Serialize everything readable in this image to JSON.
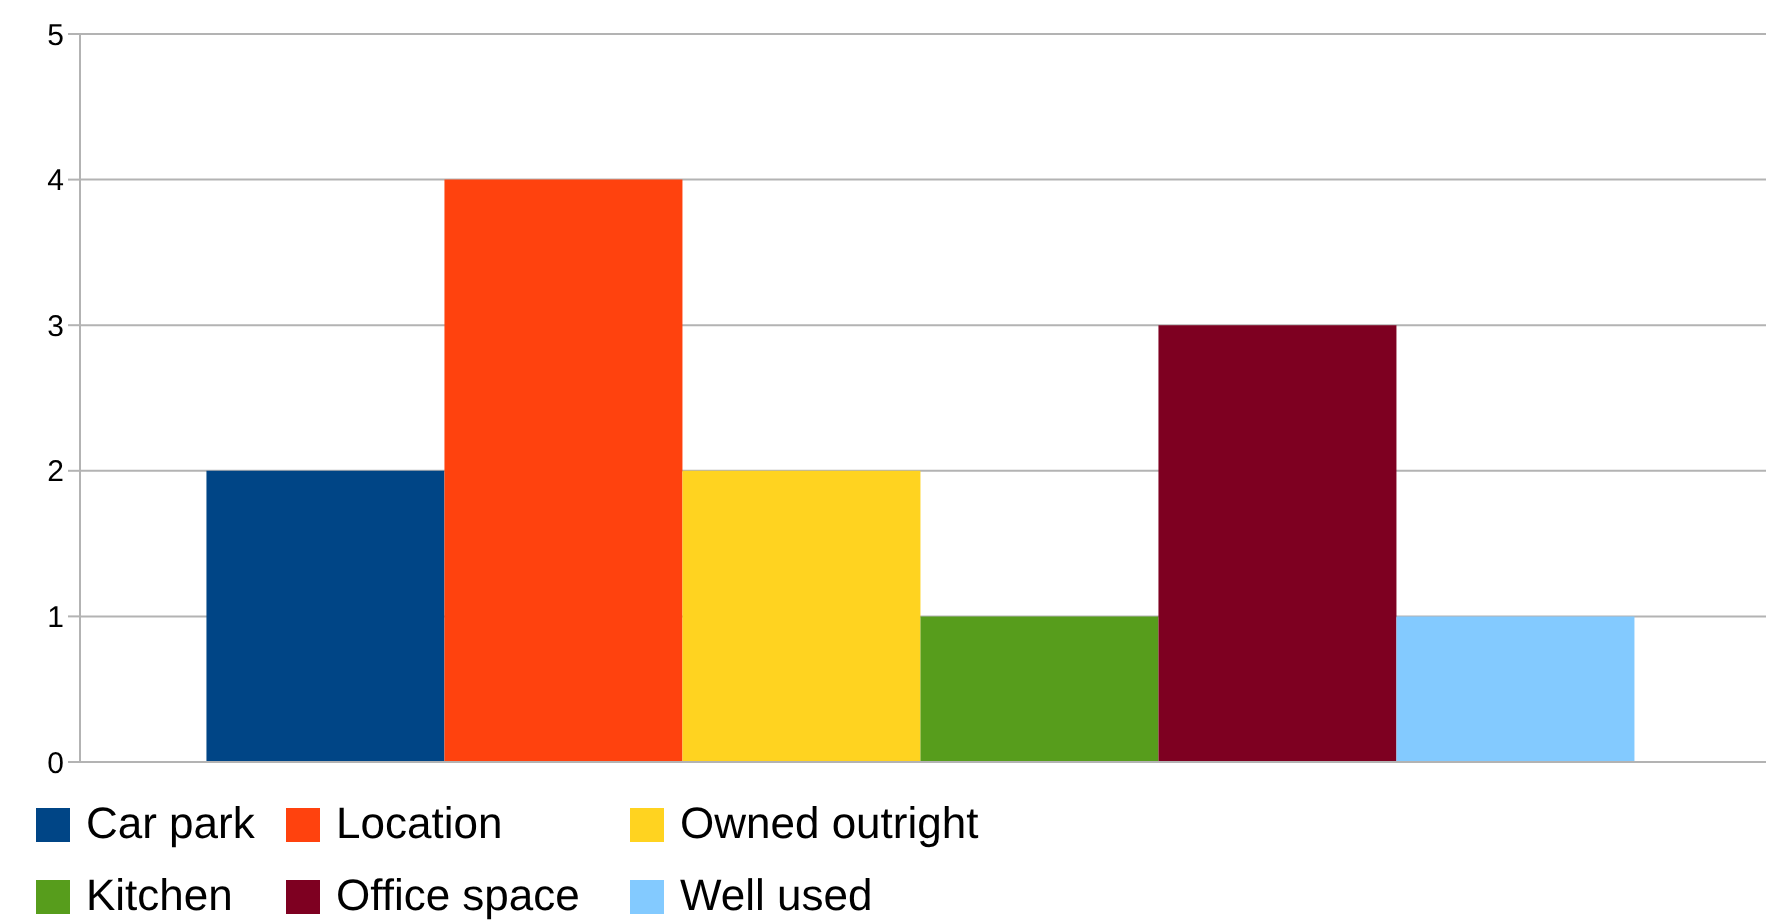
{
  "chart_data": {
    "type": "bar",
    "categories": [
      null
    ],
    "series": [
      {
        "name": "Car park",
        "color": "#004586",
        "values": [
          2
        ]
      },
      {
        "name": "Location",
        "color": "#ff420e",
        "values": [
          4
        ]
      },
      {
        "name": "Owned outright",
        "color": "#ffd320",
        "values": [
          2
        ]
      },
      {
        "name": "Kitchen",
        "color": "#579d1c",
        "values": [
          1
        ]
      },
      {
        "name": "Office space",
        "color": "#7e0021",
        "values": [
          3
        ]
      },
      {
        "name": "Well used",
        "color": "#83caff",
        "values": [
          1
        ]
      }
    ],
    "ylim": [
      0,
      5
    ],
    "yticks": [
      0,
      1,
      2,
      3,
      4,
      5
    ],
    "grid": "y",
    "legend": "bottom",
    "tick_labels": "y"
  }
}
